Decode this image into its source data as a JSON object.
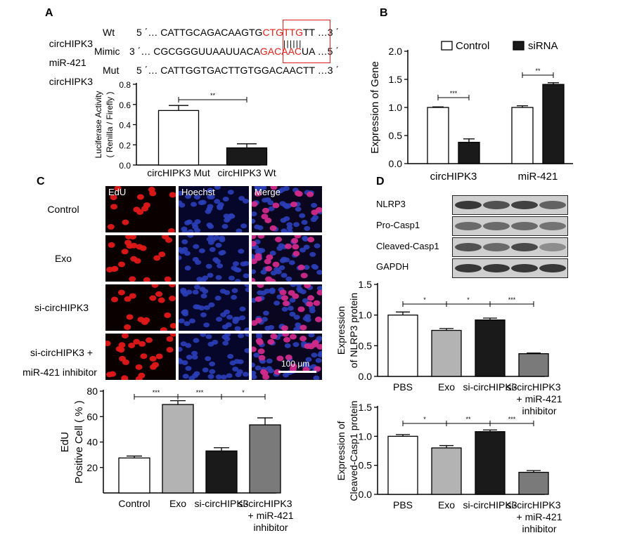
{
  "panels": {
    "a": "A",
    "b": "B",
    "c": "C",
    "d": "D"
  },
  "sequences": {
    "wt": {
      "name": "circHIPK3",
      "tag": "Wt",
      "pre": "5 ΄… CATTGCAGACAAGTG",
      "site": "CTGTTG",
      "post": "TT …3 ΄"
    },
    "mimic": {
      "name": "miR-421",
      "tag": "Mimic",
      "pre": "3 ΄… CGCGGGUUAAUUACA",
      "site": "GACAAC",
      "post": "UA …5 ΄"
    },
    "mut": {
      "name": "circHIPK3",
      "tag": "Mut",
      "pre": "5 ΄… CATTGGTGACTTGTGGACAACTT …3 ΄"
    },
    "pairing": "| | | | | |",
    "colors": {
      "site": "#e0201a"
    }
  },
  "microscopy": {
    "columns": [
      "EdU",
      "Hoechst",
      "Merge"
    ],
    "rows": [
      "Control",
      "Exo",
      "si-circHIPK3",
      "si-circHIPK3 +",
      "miR-421 inhibitor"
    ],
    "scale_bar": "100 μm"
  },
  "blot": {
    "rows": [
      "NLRP3",
      "Pro-Casp1",
      "Cleaved-Casp1",
      "GAPDH"
    ]
  },
  "chart_data": [
    {
      "id": "luciferase",
      "type": "bar",
      "categories": [
        "circHIPK3 Mut",
        "circHIPK3 Wt"
      ],
      "values": [
        0.54,
        0.17
      ],
      "errors": [
        0.05,
        0.04
      ],
      "fills": [
        "#ffffff",
        "#1a1a1a"
      ],
      "ylabel": [
        "Luciferase Activity",
        "( Renilla / Firefly )"
      ],
      "ylim": [
        0,
        0.8
      ],
      "yticks": [
        "0.0",
        "0.2",
        "0.4",
        "0.6",
        "0.8"
      ],
      "sig": [
        {
          "from": 0,
          "to": 1,
          "label": "**"
        }
      ]
    },
    {
      "id": "expression",
      "type": "bar",
      "categories": [
        "circHIPK3",
        "miR-421"
      ],
      "series": [
        {
          "name": "Control",
          "values": [
            1.0,
            1.0
          ],
          "errors": [
            0.01,
            0.03
          ],
          "fill": "#ffffff"
        },
        {
          "name": "siRNA",
          "values": [
            0.38,
            1.41
          ],
          "errors": [
            0.06,
            0.03
          ],
          "fill": "#1a1a1a"
        }
      ],
      "ylabel": [
        "Expression of Gene"
      ],
      "ylim": [
        0,
        2.0
      ],
      "yticks": [
        "0.0",
        "0.5",
        "1.0",
        "1.5",
        "2.0"
      ],
      "sig": [
        {
          "group": 0,
          "label": "***"
        },
        {
          "group": 1,
          "label": "**"
        }
      ],
      "legend": "top"
    },
    {
      "id": "edu",
      "type": "bar",
      "categories": [
        "Control",
        "Exo",
        "si-circHIPK3",
        "si-circHIPK3\n+ miR-421\ninhibitor"
      ],
      "values": [
        27.5,
        69.5,
        33,
        53.5
      ],
      "errors": [
        1.5,
        3,
        2.5,
        5.5
      ],
      "fills": [
        "#ffffff",
        "#b3b3b3",
        "#1a1a1a",
        "#7a7a7a"
      ],
      "ylabel": [
        "EdU",
        "Positive Cell ( % )"
      ],
      "ylim": [
        0,
        80
      ],
      "yticks": [
        "20",
        "40",
        "60",
        "80"
      ],
      "ytick_values": [
        20,
        40,
        60,
        80
      ],
      "sig": [
        {
          "from": 0,
          "to": 1,
          "label": "***"
        },
        {
          "from": 1,
          "to": 2,
          "label": "***"
        },
        {
          "from": 2,
          "to": 3,
          "label": "*"
        }
      ]
    },
    {
      "id": "nlrp3",
      "type": "bar",
      "categories": [
        "PBS",
        "Exo",
        "si-circHIPK3",
        "si-circHIPK3\n+ miR-421\ninhibitor"
      ],
      "values": [
        1.0,
        0.75,
        0.92,
        0.37
      ],
      "errors": [
        0.05,
        0.03,
        0.03,
        0.01
      ],
      "fills": [
        "#ffffff",
        "#b3b3b3",
        "#1a1a1a",
        "#7a7a7a"
      ],
      "ylabel": [
        "Expression",
        "of NLRP3 protein"
      ],
      "ylim": [
        0,
        1.5
      ],
      "yticks": [
        "0.0",
        "0.5",
        "1.0",
        "1.5"
      ],
      "sig": [
        {
          "from": 0,
          "to": 1,
          "label": "*"
        },
        {
          "from": 1,
          "to": 2,
          "label": "*"
        },
        {
          "from": 2,
          "to": 3,
          "label": "***"
        }
      ]
    },
    {
      "id": "casp1",
      "type": "bar",
      "categories": [
        "PBS",
        "Exo",
        "si-circHIPK3",
        "si-circHIPK3\n+ miR-421\ninhibitor"
      ],
      "values": [
        1.0,
        0.8,
        1.08,
        0.38
      ],
      "errors": [
        0.03,
        0.04,
        0.03,
        0.03
      ],
      "fills": [
        "#ffffff",
        "#b3b3b3",
        "#1a1a1a",
        "#7a7a7a"
      ],
      "ylabel": [
        "Expression of",
        "Cleaved-Casp1 protein"
      ],
      "ylim": [
        0,
        1.5
      ],
      "yticks": [
        "0.0",
        "0.5",
        "1.0",
        "1.5"
      ],
      "sig": [
        {
          "from": 0,
          "to": 1,
          "label": "*"
        },
        {
          "from": 1,
          "to": 2,
          "label": "**"
        },
        {
          "from": 2,
          "to": 3,
          "label": "***"
        }
      ]
    }
  ]
}
